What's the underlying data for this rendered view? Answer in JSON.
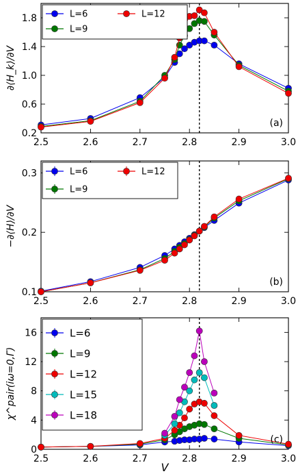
{
  "chart_data": [
    {
      "type": "line",
      "panel_label": "(a)",
      "ylabel": "∂⟨H_k⟩/∂V",
      "xlim": [
        2.5,
        3.0
      ],
      "ylim": [
        0.2,
        2.0
      ],
      "xticks": [
        "2.5",
        "2.6",
        "2.7",
        "2.8",
        "2.9",
        "3.0"
      ],
      "yticks": [
        0.2,
        0.6,
        1.0,
        1.4,
        1.8
      ],
      "ytick_labels": [
        "0.2",
        "0.6",
        "1.0",
        "1.4",
        "1.8"
      ],
      "show_xtick_labels": true,
      "vline_x": 2.82,
      "legend": {
        "placement": "top-left",
        "columns": 2,
        "errorbars": false,
        "text_size": 13
      },
      "series": [
        {
          "name": "L=6",
          "color": "#0000ee",
          "x": [
            2.5,
            2.6,
            2.7,
            2.75,
            2.77,
            2.78,
            2.79,
            2.8,
            2.81,
            2.82,
            2.83,
            2.85,
            2.9,
            3.0
          ],
          "y": [
            0.31,
            0.4,
            0.69,
            0.97,
            1.18,
            1.3,
            1.37,
            1.42,
            1.46,
            1.48,
            1.48,
            1.42,
            1.16,
            0.82
          ]
        },
        {
          "name": "L=9",
          "color": "#007700",
          "x": [
            2.5,
            2.6,
            2.7,
            2.75,
            2.77,
            2.78,
            2.79,
            2.8,
            2.81,
            2.82,
            2.83,
            2.85,
            2.9,
            3.0
          ],
          "y": [
            0.29,
            0.37,
            0.64,
            1.0,
            1.22,
            1.42,
            1.55,
            1.65,
            1.72,
            1.76,
            1.75,
            1.56,
            1.14,
            0.78
          ]
        },
        {
          "name": "L=12",
          "color": "#ee0000",
          "x": [
            2.5,
            2.6,
            2.7,
            2.75,
            2.77,
            2.78,
            2.79,
            2.8,
            2.81,
            2.82,
            2.83,
            2.85,
            2.9,
            3.0
          ],
          "y": [
            0.28,
            0.36,
            0.62,
            0.96,
            1.25,
            1.52,
            1.68,
            1.82,
            1.83,
            1.91,
            1.87,
            1.6,
            1.12,
            0.75
          ]
        }
      ]
    },
    {
      "type": "line",
      "panel_label": "(b)",
      "ylabel": "−∂⟨H⟩/∂V",
      "xlim": [
        2.5,
        3.0
      ],
      "ylim": [
        0.1,
        0.32
      ],
      "xticks": [
        "2.5",
        "2.6",
        "2.7",
        "2.8",
        "2.9",
        "3.0"
      ],
      "yticks": [
        0.1,
        0.2,
        0.3
      ],
      "ytick_labels": [
        "0.1",
        "0.2",
        "0.3"
      ],
      "show_xtick_labels": true,
      "vline_x": 2.82,
      "legend": {
        "placement": "top-left",
        "columns": 2,
        "errorbars": true,
        "text_size": 13
      },
      "series": [
        {
          "name": "L=6",
          "color": "#0000ee",
          "x": [
            2.5,
            2.6,
            2.7,
            2.75,
            2.77,
            2.78,
            2.79,
            2.8,
            2.81,
            2.82,
            2.83,
            2.85,
            2.9,
            3.0
          ],
          "y": [
            0.101,
            0.117,
            0.141,
            0.161,
            0.172,
            0.178,
            0.184,
            0.19,
            0.196,
            0.202,
            0.208,
            0.22,
            0.249,
            0.288
          ]
        },
        {
          "name": "L=9",
          "color": "#007700",
          "x": [
            2.5,
            2.6,
            2.7,
            2.75,
            2.77,
            2.78,
            2.79,
            2.8,
            2.81,
            2.82,
            2.83,
            2.85,
            2.9,
            3.0
          ],
          "y": [
            0.1,
            0.115,
            0.137,
            0.156,
            0.168,
            0.175,
            0.181,
            0.188,
            0.195,
            0.202,
            0.209,
            0.224,
            0.253,
            0.29
          ]
        },
        {
          "name": "L=12",
          "color": "#ee0000",
          "x": [
            2.5,
            2.6,
            2.7,
            2.75,
            2.77,
            2.78,
            2.79,
            2.8,
            2.81,
            2.82,
            2.83,
            2.85,
            2.9,
            3.0
          ],
          "y": [
            0.1,
            0.115,
            0.136,
            0.153,
            0.165,
            0.172,
            0.179,
            0.187,
            0.194,
            0.202,
            0.21,
            0.226,
            0.256,
            0.291
          ]
        }
      ]
    },
    {
      "type": "line",
      "panel_label": "(c)",
      "ylabel": "χ^pair(iω=0,Γ)",
      "xlabel": "V",
      "xlim": [
        2.5,
        3.0
      ],
      "ylim": [
        0,
        18
      ],
      "xticks": [
        "2.5",
        "2.6",
        "2.7",
        "2.8",
        "2.9",
        "3.0"
      ],
      "yticks": [
        0,
        4,
        8,
        12,
        16
      ],
      "ytick_labels": [
        "0",
        "4",
        "8",
        "12",
        "16"
      ],
      "show_xtick_labels": true,
      "vline_x": 2.82,
      "legend": {
        "placement": "top-left",
        "columns": 1,
        "errorbars": true,
        "text_size": 15
      },
      "series": [
        {
          "name": "L=6",
          "color": "#0000ee",
          "x": [
            2.5,
            2.6,
            2.7,
            2.75,
            2.77,
            2.78,
            2.79,
            2.8,
            2.81,
            2.82,
            2.83,
            2.85,
            2.9,
            3.0
          ],
          "y": [
            0.3,
            0.4,
            0.6,
            1.0,
            1.1,
            1.2,
            1.3,
            1.3,
            1.4,
            1.4,
            1.5,
            1.4,
            1.0,
            0.5
          ]
        },
        {
          "name": "L=9",
          "color": "#007700",
          "x": [
            2.5,
            2.6,
            2.7,
            2.75,
            2.77,
            2.78,
            2.79,
            2.8,
            2.81,
            2.82,
            2.83,
            2.85,
            2.9,
            3.0
          ],
          "y": [
            0.3,
            0.4,
            0.7,
            1.3,
            2.0,
            2.4,
            2.8,
            3.1,
            3.3,
            3.5,
            3.4,
            2.8,
            1.5,
            0.6
          ]
        },
        {
          "name": "L=12",
          "color": "#ee0000",
          "x": [
            2.5,
            2.6,
            2.7,
            2.75,
            2.77,
            2.78,
            2.79,
            2.8,
            2.81,
            2.82,
            2.83,
            2.85,
            2.9,
            3.0
          ],
          "y": [
            0.3,
            0.4,
            0.8,
            1.5,
            2.6,
            3.3,
            4.3,
            5.5,
            6.2,
            6.5,
            6.3,
            4.6,
            1.9,
            0.7
          ]
        },
        {
          "name": "L=15",
          "color": "#00bbbb",
          "x": [
            2.75,
            2.77,
            2.78,
            2.79,
            2.8,
            2.81,
            2.82,
            2.83,
            2.85
          ],
          "y": [
            1.9,
            3.5,
            5.0,
            6.5,
            8.0,
            9.5,
            10.5,
            9.8,
            6.0
          ]
        },
        {
          "name": "L=18",
          "color": "#bb00bb",
          "x": [
            2.75,
            2.77,
            2.78,
            2.79,
            2.8,
            2.81,
            2.82,
            2.83,
            2.85
          ],
          "y": [
            2.2,
            4.5,
            6.8,
            8.5,
            10.5,
            12.8,
            16.2,
            12.0,
            7.7
          ]
        }
      ]
    }
  ]
}
